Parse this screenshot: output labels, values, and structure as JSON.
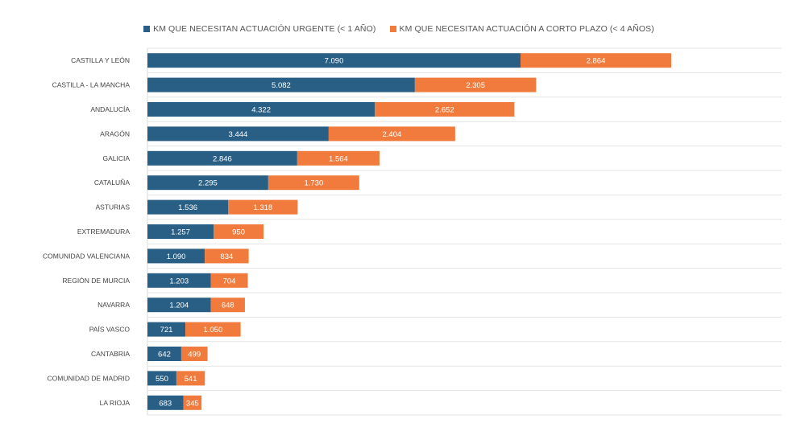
{
  "chart_data": {
    "type": "bar",
    "orientation": "horizontal",
    "stacked": true,
    "categories": [
      "CASTILLA Y LEÓN",
      "CASTILLA - LA MANCHA",
      "ANDALUCÍA",
      "ARAGÓN",
      "GALICIA",
      "CATALUÑA",
      "ASTURIAS",
      "EXTREMADURA",
      "COMUNIDAD VALENCIANA",
      "REGIÓN DE MURCIA",
      "NAVARRA",
      "PAÍS VASCO",
      "CANTABRIA",
      "COMUNIDAD DE MADRID",
      "LA RIOJA"
    ],
    "series": [
      {
        "name": "KM QUE NECESITAN ACTUACIÓN URGENTE (< 1 AÑO)",
        "color": "#2a5f85",
        "values": [
          7090,
          5082,
          4322,
          3444,
          2846,
          2295,
          1536,
          1257,
          1090,
          1203,
          1204,
          721,
          642,
          550,
          683
        ],
        "labels": [
          "7.090",
          "5.082",
          "4.322",
          "3.444",
          "2.846",
          "2.295",
          "1.536",
          "1.257",
          "1.090",
          "1.203",
          "1.204",
          "721",
          "642",
          "550",
          "683"
        ]
      },
      {
        "name": "KM QUE NECESITAN ACTUACIÓN A CORTO PLAZO (< 4 AÑOS)",
        "color": "#f07b3c",
        "values": [
          2864,
          2305,
          2652,
          2404,
          1564,
          1730,
          1318,
          950,
          834,
          704,
          648,
          1050,
          499,
          541,
          345
        ],
        "labels": [
          "2.864",
          "2.305",
          "2.652",
          "2.404",
          "1.564",
          "1.730",
          "1.318",
          "950",
          "834",
          "704",
          "648",
          "1.050",
          "499",
          "541",
          "345"
        ]
      }
    ],
    "xlim": [
      0,
      12000
    ],
    "legend_position": "top",
    "grid": "horizontal separators"
  }
}
